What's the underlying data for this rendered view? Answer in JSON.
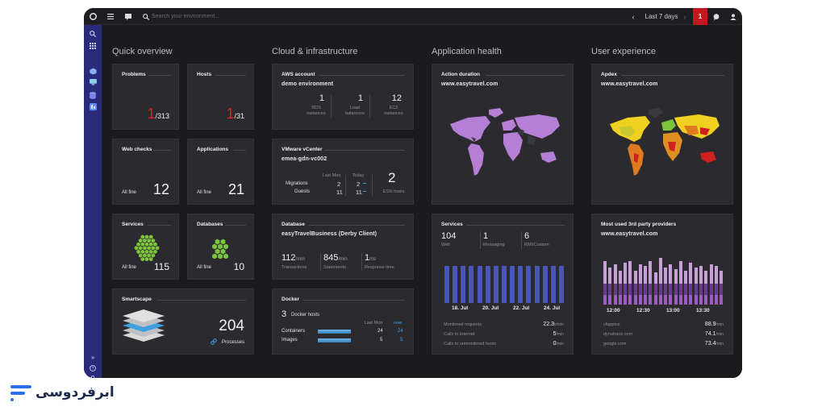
{
  "topbar": {
    "search_placeholder": "Search your environment...",
    "timeframe": "Last 7 days",
    "alerts": "1"
  },
  "columns": [
    "Quick overview",
    "Cloud & infrastructure",
    "Application health",
    "User experience"
  ],
  "quick": {
    "problems": {
      "title": "Problems",
      "value": "1",
      "total": "/313"
    },
    "hosts": {
      "title": "Hosts",
      "value": "1",
      "total": "/31"
    },
    "webchecks": {
      "title": "Web checks",
      "status": "All fine",
      "value": "12"
    },
    "applications": {
      "title": "Applications",
      "status": "All fine",
      "value": "21"
    },
    "services": {
      "title": "Services",
      "status": "All fine",
      "value": "115"
    },
    "databases": {
      "title": "Databases",
      "status": "All fine",
      "value": "10"
    },
    "smartscape": {
      "title": "Smartscape",
      "value": "204",
      "label": "Processes"
    }
  },
  "cloud": {
    "aws": {
      "title": "AWS account",
      "sub": "demo environment",
      "items": [
        {
          "value": "1",
          "label1": "RDS",
          "label2": "instances"
        },
        {
          "value": "1",
          "label1": "Load",
          "label2": "balancers"
        },
        {
          "value": "12",
          "label1": "EC2",
          "label2": "instances"
        }
      ]
    },
    "vmware": {
      "title": "VMware vCenter",
      "sub": "emea-gdn-vc002",
      "col1": "Last Mon",
      "col2": "Today",
      "rows": [
        {
          "label": "Migrations",
          "a": "2",
          "b": "2"
        },
        {
          "label": "Guests",
          "a": "11",
          "b": "11"
        }
      ],
      "esxi_value": "2",
      "esxi_label": "ESXi hosts"
    },
    "database": {
      "title": "Database",
      "sub": "easyTravelBusiness (Derby Client)",
      "m1": {
        "value": "112",
        "unit": "/min",
        "label": "Transactions"
      },
      "m2": {
        "value": "845",
        "unit": "/min",
        "label": "Statements"
      },
      "m3": {
        "value": "1",
        "unit": "ms",
        "label": "Response time"
      }
    },
    "docker": {
      "title": "Docker",
      "count": "3",
      "count_label": "Docker hosts",
      "col1": "Last Mon",
      "col2": "now",
      "rows": [
        {
          "label": "Containers",
          "a": "24",
          "b": "24"
        },
        {
          "label": "Images",
          "a": "5",
          "b": "5"
        }
      ]
    }
  },
  "apphealth": {
    "action": {
      "title": "Action duration",
      "sub": "www.easytravel.com"
    },
    "services": {
      "title": "Services",
      "stats": [
        {
          "value": "104",
          "label": "Web"
        },
        {
          "value": "1",
          "label": "Messaging"
        },
        {
          "value": "6",
          "label": "RMI/Custom"
        }
      ],
      "xlabels": [
        "18. Jul",
        "20. Jul",
        "22. Jul",
        "24. Jul"
      ],
      "rows": [
        {
          "label": "Monitored requests",
          "value": "22.3",
          "unit": "k/min"
        },
        {
          "label": "Calls to Internet",
          "value": "5",
          "unit": "/min"
        },
        {
          "label": "Calls to unmonitored hosts",
          "value": "0",
          "unit": "/min"
        }
      ]
    }
  },
  "ux": {
    "apdex": {
      "title": "Apdex",
      "sub": "www.easytravel.com"
    },
    "third": {
      "title": "Most used 3rd party providers",
      "sub": "www.easytravel.com",
      "xlabels": [
        "12:00",
        "12:30",
        "13:00",
        "13:30"
      ],
      "rows": [
        {
          "label": "cfappius",
          "value": "88.9",
          "unit": "/min"
        },
        {
          "label": "dynatrace.com",
          "value": "74.1",
          "unit": "/min"
        },
        {
          "label": "google.com",
          "value": "73.4",
          "unit": "/min"
        }
      ]
    }
  },
  "brand": {
    "text": "ابرفردوسی"
  },
  "colors": {
    "accent_red": "#e0202a",
    "nav": "#2a2a7a",
    "services_bar": "#4a55b8",
    "third_party": "#6a3a8c",
    "map_purple": "#b57fd6"
  }
}
